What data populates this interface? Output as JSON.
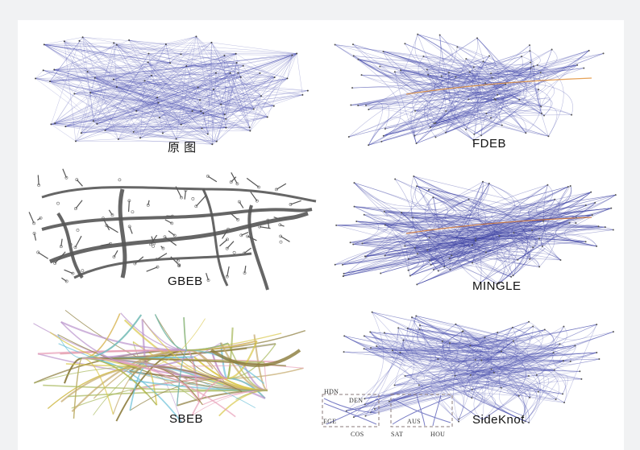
{
  "panels": [
    {
      "id": "original",
      "caption": "原 图"
    },
    {
      "id": "fdeb",
      "caption": "FDEB"
    },
    {
      "id": "gbeb",
      "caption": "GBEB"
    },
    {
      "id": "mingle",
      "caption": "MINGLE"
    },
    {
      "id": "sbeb",
      "caption": "SBEB"
    },
    {
      "id": "sideknot",
      "caption": "SideKnot"
    }
  ],
  "inset_labels": {
    "hdn": "HDN",
    "den": "DEN",
    "ege": "EGE",
    "cos": "COS",
    "sat": "SAT",
    "aus": "AUS",
    "hou": "HOU"
  },
  "colors": {
    "original": "#4b50b0",
    "fdeb": "#3f46a8",
    "fdeb_highlight": "#e0892c",
    "gbeb": "#555555",
    "mingle": "#3e44a6",
    "sbeb": [
      "#8a7a3a",
      "#c3a86a",
      "#6bc0d8",
      "#e8a0b8",
      "#a6b85a",
      "#b993cc",
      "#d9c84a"
    ],
    "sideknot": "#4a4fb0"
  }
}
